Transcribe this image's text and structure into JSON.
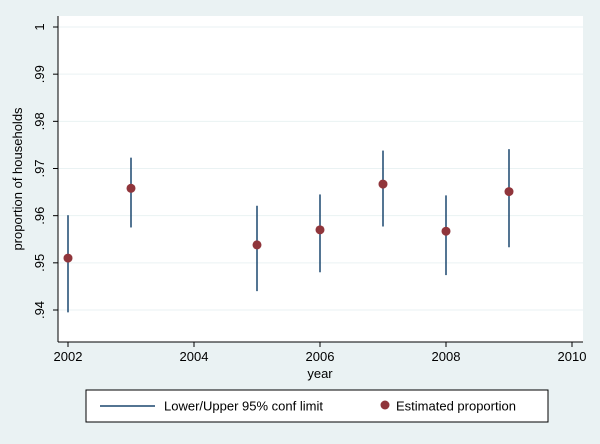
{
  "chart_data": {
    "type": "scatter",
    "xlabel": "year",
    "ylabel": "proportion of households",
    "xlim": [
      2002,
      2010
    ],
    "ylim": [
      0.935,
      1.0
    ],
    "xticks": [
      2002,
      2004,
      2006,
      2008,
      2010
    ],
    "xtick_labels": [
      "2002",
      "2004",
      "2006",
      "2008",
      "2010"
    ],
    "yticks": [
      0.94,
      0.95,
      0.96,
      0.97,
      0.98,
      0.99,
      1.0
    ],
    "ytick_labels": [
      ".94",
      ".95",
      ".96",
      ".97",
      ".98",
      ".99",
      "1"
    ],
    "grid": "horizontal",
    "legend_position": "bottom",
    "series": [
      {
        "name": "Lower/Upper 95% conf limit",
        "kind": "range",
        "color": "#1a476f",
        "x": [
          2002,
          2003,
          2005,
          2006,
          2007,
          2008,
          2009
        ],
        "lower": [
          0.9395,
          0.9575,
          0.944,
          0.948,
          0.9577,
          0.9474,
          0.9533
        ],
        "upper": [
          0.9601,
          0.9723,
          0.9621,
          0.9645,
          0.9738,
          0.9643,
          0.9741
        ]
      },
      {
        "name": "Estimated proportion",
        "kind": "point",
        "color": "#90353b",
        "x": [
          2002,
          2003,
          2005,
          2006,
          2007,
          2008,
          2009
        ],
        "y": [
          0.951,
          0.9658,
          0.9538,
          0.957,
          0.9667,
          0.9567,
          0.9651
        ]
      }
    ]
  }
}
